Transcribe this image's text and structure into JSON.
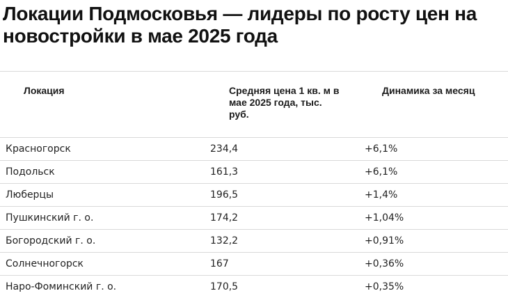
{
  "title": "Локации Подмосковья — лидеры по росту цен на новостройки в мае 2025 года",
  "table": {
    "headers": [
      "Локация",
      "Средняя цена 1 кв. м в мае 2025 года, тыс. руб.",
      "Динамика за месяц"
    ],
    "rows": [
      [
        "Красногорск",
        "234,4",
        "+6,1%"
      ],
      [
        "Подольск",
        "161,3",
        "+6,1%"
      ],
      [
        "Люберцы",
        "196,5",
        "+1,4%"
      ],
      [
        "Пушкинский г. о.",
        "174,2",
        "+1,04%"
      ],
      [
        "Богородский г. о.",
        "132,2",
        "+0,91%"
      ],
      [
        "Солнечногорск",
        "167",
        "+0,36%"
      ],
      [
        "Наро-Фоминский г. о.",
        "170,5",
        "+0,35%"
      ]
    ]
  }
}
